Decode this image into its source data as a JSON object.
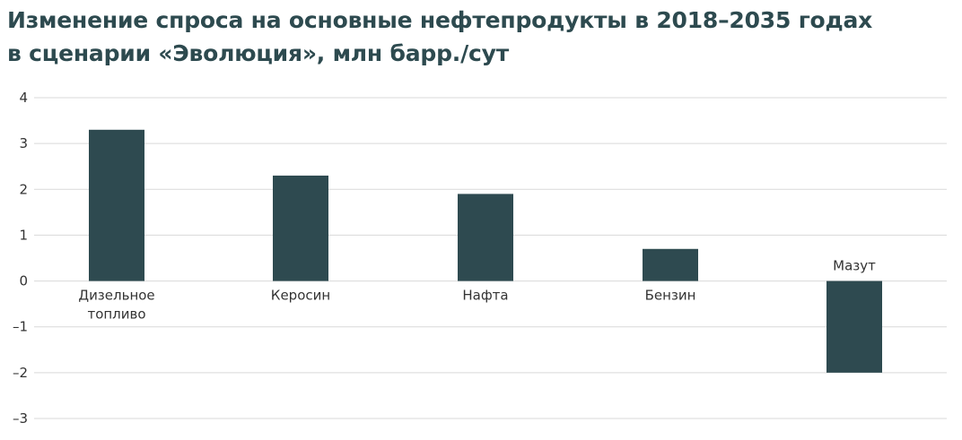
{
  "title": {
    "line1": "Изменение спроса на основные нефтепродукты в 2018–2035 годах",
    "line2": "в сценарии «Эволюция», млн барр./сут"
  },
  "colors": {
    "bar": "#2e4a50",
    "title": "#2d4a4f",
    "grid": "#d9d9d9"
  },
  "chart_data": {
    "type": "bar",
    "title": "Изменение спроса на основные нефтепродукты в 2018–2035 годах в сценарии «Эволюция», млн барр./сут",
    "categories": [
      "Дизельное топливо",
      "Керосин",
      "Нафта",
      "Бензин",
      "Мазут"
    ],
    "category_label_lines": [
      [
        "Дизельное",
        "топливо"
      ],
      [
        "Керосин"
      ],
      [
        "Нафта"
      ],
      [
        "Бензин"
      ],
      [
        "Мазут"
      ]
    ],
    "values": [
      3.3,
      2.3,
      1.9,
      0.7,
      -2.0
    ],
    "ylim": [
      -3,
      4
    ],
    "yticks": [
      4,
      3,
      2,
      1,
      0,
      -1,
      -2,
      -3
    ],
    "ytick_labels": [
      "4",
      "3",
      "2",
      "1",
      "0",
      "–1",
      "–2",
      "–3"
    ],
    "grid": true,
    "legend": false
  }
}
